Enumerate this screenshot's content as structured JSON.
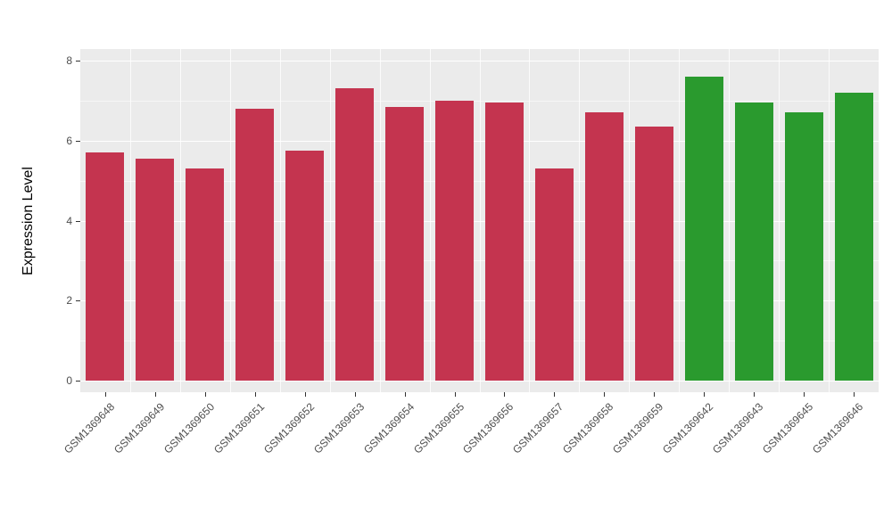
{
  "chart_data": {
    "type": "bar",
    "title": "",
    "xlabel": "",
    "ylabel": "Expression Level",
    "ylim": [
      0,
      8
    ],
    "yticks": [
      0,
      2,
      4,
      6,
      8
    ],
    "yticks_minor": [
      1,
      3,
      5,
      7
    ],
    "grid": true,
    "legend_position": "none",
    "categories": [
      "GSM1369648",
      "GSM1369649",
      "GSM1369650",
      "GSM1369651",
      "GSM1369652",
      "GSM1369653",
      "GSM1369654",
      "GSM1369655",
      "GSM1369656",
      "GSM1369657",
      "GSM1369658",
      "GSM1369659",
      "GSM1369642",
      "GSM1369643",
      "GSM1369645",
      "GSM1369646"
    ],
    "values": [
      5.7,
      5.55,
      5.3,
      6.8,
      5.75,
      7.3,
      6.85,
      7.0,
      6.95,
      5.3,
      6.7,
      6.35,
      7.6,
      6.95,
      6.7,
      7.2
    ],
    "groups": [
      "red",
      "red",
      "red",
      "red",
      "red",
      "red",
      "red",
      "red",
      "red",
      "red",
      "red",
      "red",
      "green",
      "green",
      "green",
      "green"
    ],
    "palette": {
      "red": "#C4344F",
      "green": "#2A9A2E"
    },
    "panel_bg": "#EBEBEB",
    "grid_color": "#FFFFFF",
    "tick_label_color": "#4D4D4D",
    "axis_title_color": "#000000"
  }
}
